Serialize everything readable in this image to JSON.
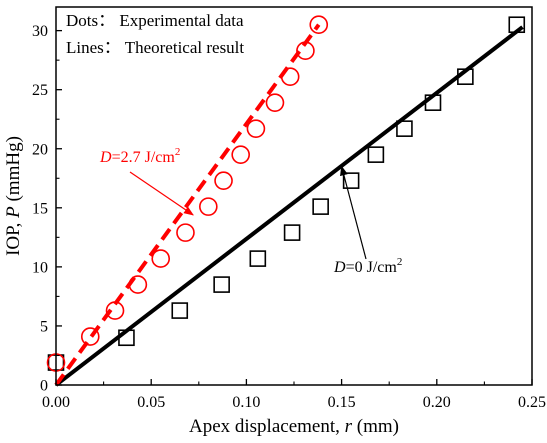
{
  "chart_data": {
    "type": "scatter",
    "xlabel": "Apex displacement, r (mm)",
    "ylabel": "IOP, P (mmHg)",
    "xlim": [
      0,
      0.25
    ],
    "ylim": [
      0,
      32
    ],
    "x_ticks": [
      0,
      0.05,
      0.1,
      0.15,
      0.2,
      0.25
    ],
    "x_tick_labels": [
      "0.00",
      "0.05",
      "0.10",
      "0.15",
      "0.20",
      "0.25"
    ],
    "y_ticks": [
      0,
      5,
      10,
      15,
      20,
      25,
      30
    ],
    "y_tick_labels": [
      "0",
      "5",
      "10",
      "15",
      "20",
      "25",
      "30"
    ],
    "legend": {
      "placement": "top-left",
      "entries": [
        "Dots： Experimental data",
        "Lines： Theoretical result"
      ]
    },
    "series": [
      {
        "label": "D=0 J/cm²",
        "color": "#000000",
        "marker": "square",
        "points": [
          [
            0.0,
            1.9
          ],
          [
            0.037,
            4.0
          ],
          [
            0.065,
            6.3
          ],
          [
            0.087,
            8.5
          ],
          [
            0.106,
            10.7
          ],
          [
            0.124,
            12.9
          ],
          [
            0.139,
            15.1
          ],
          [
            0.155,
            17.3
          ],
          [
            0.168,
            19.5
          ],
          [
            0.183,
            21.7
          ],
          [
            0.198,
            23.9
          ],
          [
            0.215,
            26.1
          ],
          [
            0.242,
            30.5
          ]
        ],
        "fit_line": [
          [
            0.0,
            0.0
          ],
          [
            0.245,
            30.3
          ]
        ]
      },
      {
        "label": "D=2.7 J/cm²",
        "color": "#ff0000",
        "marker": "circle",
        "points": [
          [
            0.0,
            1.9
          ],
          [
            0.018,
            4.1
          ],
          [
            0.031,
            6.3
          ],
          [
            0.043,
            8.5
          ],
          [
            0.055,
            10.7
          ],
          [
            0.068,
            12.9
          ],
          [
            0.08,
            15.1
          ],
          [
            0.088,
            17.3
          ],
          [
            0.097,
            19.5
          ],
          [
            0.105,
            21.7
          ],
          [
            0.115,
            23.9
          ],
          [
            0.123,
            26.1
          ],
          [
            0.131,
            28.3
          ],
          [
            0.138,
            30.5
          ]
        ],
        "fit_line": [
          [
            0.0,
            0.0
          ],
          [
            0.138,
            30.5
          ]
        ]
      }
    ],
    "annotations": [
      {
        "prefix": "D",
        "text": "=2.7 J/cm",
        "sup": "2",
        "color": "#ff0000",
        "arrow_to": [
          0.072,
          14.4
        ]
      },
      {
        "prefix": "D",
        "text": "=0 J/cm",
        "sup": "2",
        "color": "#000000",
        "arrow_to": [
          0.15,
          18.5
        ]
      }
    ]
  }
}
